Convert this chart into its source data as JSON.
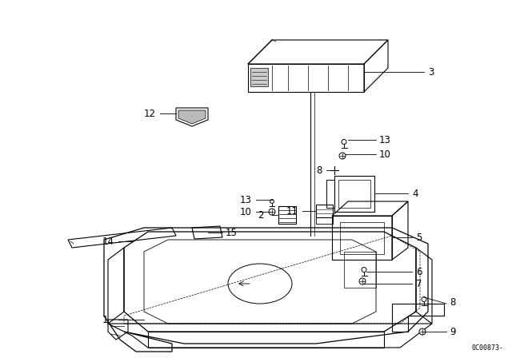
{
  "bg_color": "#ffffff",
  "image_code": "0C00873-",
  "fig_width": 6.4,
  "fig_height": 4.48,
  "dpi": 100
}
